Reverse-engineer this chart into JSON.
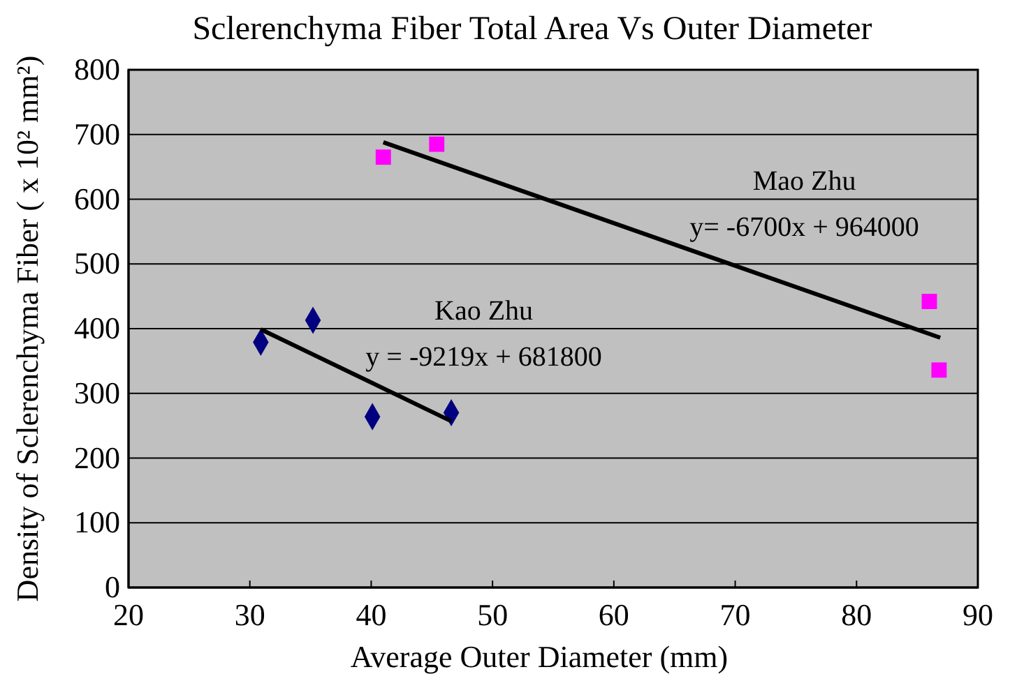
{
  "chart_data": {
    "type": "scatter",
    "title": "Sclerenchyma Fiber Total Area Vs Outer Diameter",
    "xlabel": "Average Outer Diameter (mm)",
    "ylabel": "Density of Sclerenchyma Fiber ( x 10² mm²)",
    "xlim": [
      20,
      90
    ],
    "xticks": [
      20,
      30,
      40,
      50,
      60,
      70,
      80,
      90
    ],
    "ylim": [
      0,
      800
    ],
    "yticks": [
      0,
      100,
      200,
      300,
      400,
      500,
      600,
      700,
      800
    ],
    "grid": "y",
    "legend": false,
    "series": [
      {
        "marker": "diamond",
        "color": "#000080",
        "x": [
          30.9,
          35.2,
          40.1,
          46.6
        ],
        "values": [
          379,
          413,
          264,
          270
        ]
      },
      {
        "marker": "square",
        "color": "#ff00ff",
        "x": [
          41.0,
          45.4,
          86.0,
          86.8
        ],
        "values": [
          665,
          685,
          442,
          336
        ]
      },
      {
        "type": "line",
        "name": "Kao Zhu",
        "marker": "none",
        "color": "#000000",
        "x": [
          30.9,
          46.6
        ],
        "values": [
          399,
          257
        ]
      },
      {
        "type": "line",
        "name": "Mao Zhu",
        "marker": "none",
        "color": "#000000",
        "x": [
          41.0,
          86.9
        ],
        "values": [
          688,
          386
        ]
      }
    ],
    "annotations": [
      "y = -9219x + 681800",
      "y= -6700x + 964000"
    ]
  }
}
